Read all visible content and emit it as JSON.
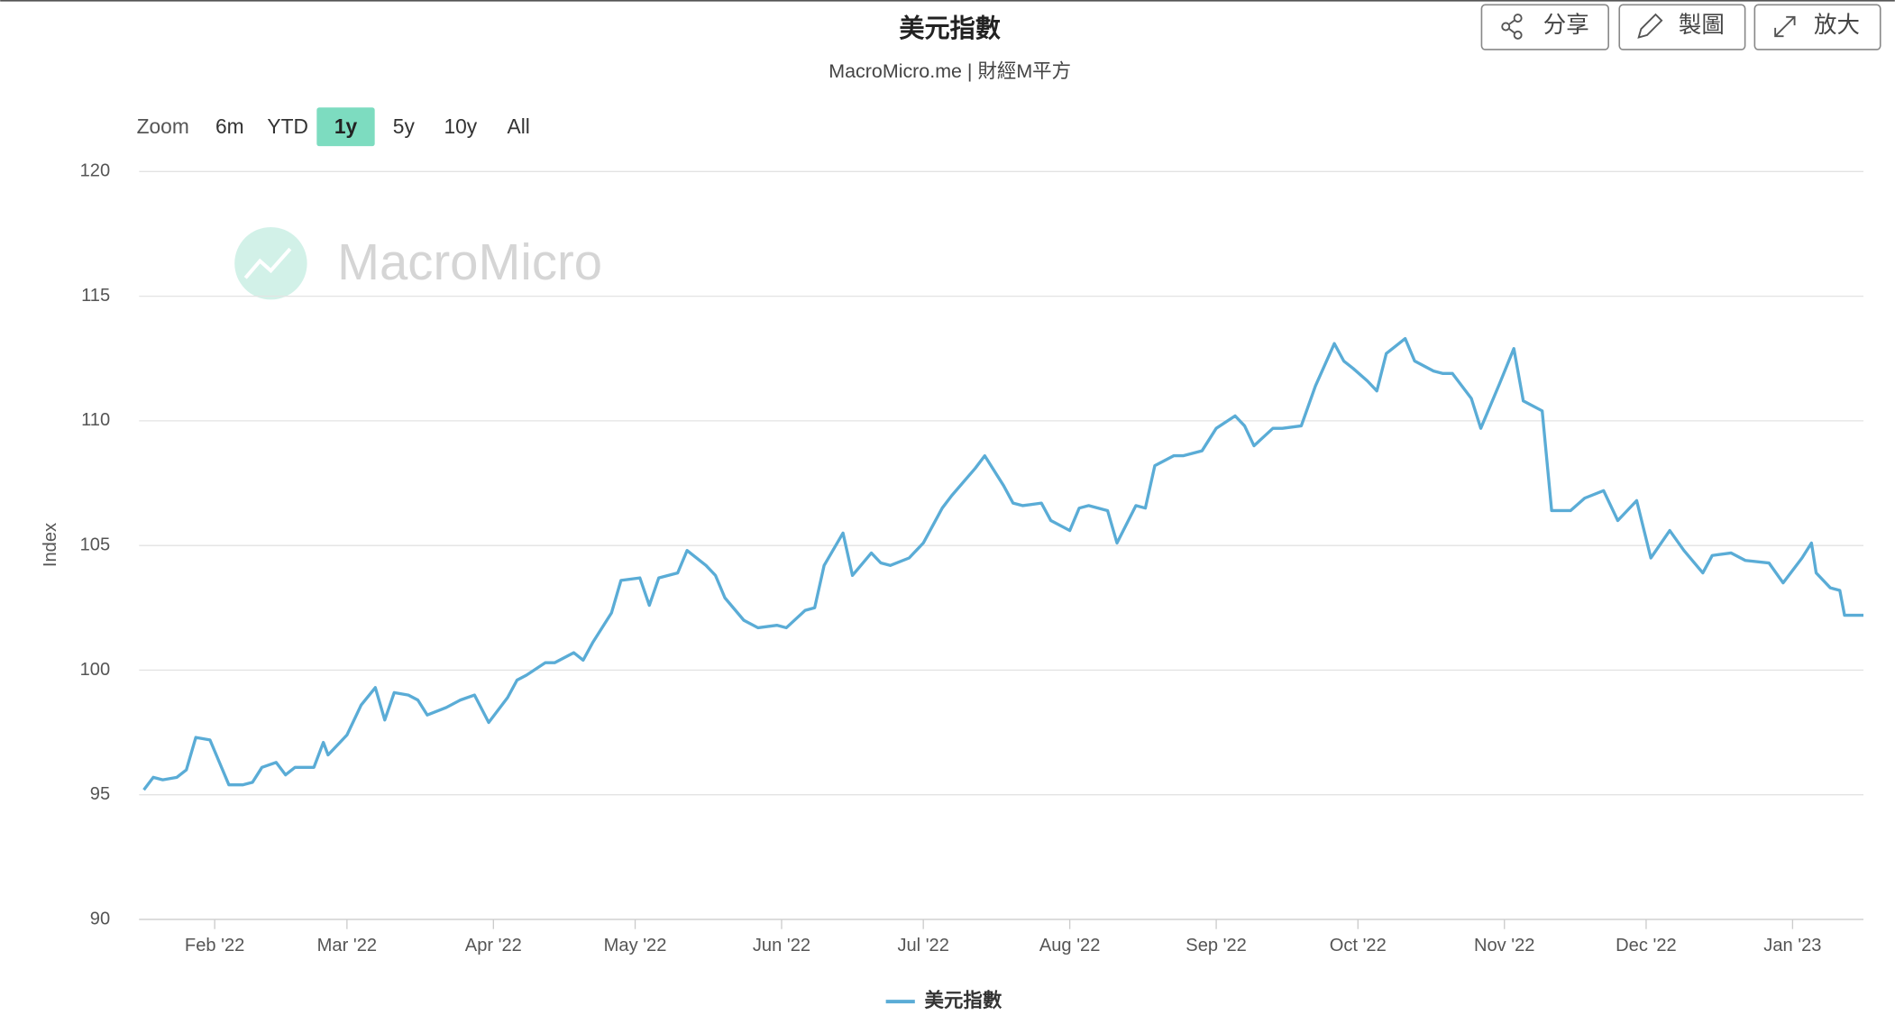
{
  "toolbar": [
    "分享",
    "製圖",
    "放大"
  ],
  "zoom": {
    "label": "Zoom",
    "options": [
      "6m",
      "YTD",
      "1y",
      "5y",
      "10y",
      "All"
    ],
    "selected": "1y"
  },
  "chart_data": {
    "type": "line",
    "title": "美元指數",
    "subtitle": "MacroMicro.me | 財經M平方",
    "watermark": "MacroMicro",
    "y_label": "Index",
    "grid": true,
    "legend": "bottom",
    "xlim": [
      "2022-01-16",
      "2023-01-16"
    ],
    "xticks": [
      {
        "value": "2022-02-01",
        "label": "Feb '22"
      },
      {
        "value": "2022-03-01",
        "label": "Mar '22"
      },
      {
        "value": "2022-04-01",
        "label": "Apr '22"
      },
      {
        "value": "2022-05-01",
        "label": "May '22"
      },
      {
        "value": "2022-06-01",
        "label": "Jun '22"
      },
      {
        "value": "2022-07-01",
        "label": "Jul '22"
      },
      {
        "value": "2022-08-01",
        "label": "Aug '22"
      },
      {
        "value": "2022-09-01",
        "label": "Sep '22"
      },
      {
        "value": "2022-10-01",
        "label": "Oct '22"
      },
      {
        "value": "2022-11-01",
        "label": "Nov '22"
      },
      {
        "value": "2022-12-01",
        "label": "Dec '22"
      },
      {
        "value": "2023-01-01",
        "label": "Jan '23"
      }
    ],
    "ylim": [
      90,
      120
    ],
    "yticks": [
      90,
      95,
      100,
      105,
      110,
      115,
      120
    ],
    "x": [
      "2022-01-17",
      "2022-01-19",
      "2022-01-21",
      "2022-01-24",
      "2022-01-26",
      "2022-01-28",
      "2022-01-31",
      "2022-02-02",
      "2022-02-04",
      "2022-02-07",
      "2022-02-09",
      "2022-02-11",
      "2022-02-14",
      "2022-02-16",
      "2022-02-18",
      "2022-02-22",
      "2022-02-24",
      "2022-02-25",
      "2022-03-01",
      "2022-03-04",
      "2022-03-07",
      "2022-03-09",
      "2022-03-11",
      "2022-03-14",
      "2022-03-16",
      "2022-03-18",
      "2022-03-22",
      "2022-03-25",
      "2022-03-28",
      "2022-03-31",
      "2022-04-04",
      "2022-04-06",
      "2022-04-08",
      "2022-04-12",
      "2022-04-14",
      "2022-04-18",
      "2022-04-20",
      "2022-04-22",
      "2022-04-26",
      "2022-04-28",
      "2022-05-02",
      "2022-05-04",
      "2022-05-06",
      "2022-05-10",
      "2022-05-12",
      "2022-05-16",
      "2022-05-18",
      "2022-05-20",
      "2022-05-24",
      "2022-05-27",
      "2022-05-31",
      "2022-06-02",
      "2022-06-06",
      "2022-06-08",
      "2022-06-10",
      "2022-06-14",
      "2022-06-16",
      "2022-06-20",
      "2022-06-22",
      "2022-06-24",
      "2022-06-28",
      "2022-07-01",
      "2022-07-05",
      "2022-07-07",
      "2022-07-12",
      "2022-07-14",
      "2022-07-18",
      "2022-07-20",
      "2022-07-22",
      "2022-07-26",
      "2022-07-28",
      "2022-08-01",
      "2022-08-03",
      "2022-08-05",
      "2022-08-09",
      "2022-08-11",
      "2022-08-15",
      "2022-08-17",
      "2022-08-19",
      "2022-08-23",
      "2022-08-25",
      "2022-08-29",
      "2022-09-01",
      "2022-09-05",
      "2022-09-07",
      "2022-09-09",
      "2022-09-13",
      "2022-09-15",
      "2022-09-19",
      "2022-09-22",
      "2022-09-26",
      "2022-09-28",
      "2022-09-30",
      "2022-10-03",
      "2022-10-05",
      "2022-10-07",
      "2022-10-11",
      "2022-10-13",
      "2022-10-17",
      "2022-10-19",
      "2022-10-21",
      "2022-10-25",
      "2022-10-27",
      "2022-10-31",
      "2022-11-03",
      "2022-11-05",
      "2022-11-09",
      "2022-11-11",
      "2022-11-15",
      "2022-11-18",
      "2022-11-22",
      "2022-11-25",
      "2022-11-29",
      "2022-12-02",
      "2022-12-06",
      "2022-12-09",
      "2022-12-13",
      "2022-12-15",
      "2022-12-19",
      "2022-12-22",
      "2022-12-27",
      "2022-12-30",
      "2023-01-03",
      "2023-01-05",
      "2023-01-06",
      "2023-01-09",
      "2023-01-11",
      "2023-01-12",
      "2023-01-16"
    ],
    "series": [
      {
        "name": "美元指數",
        "color": "#5aacd6",
        "values": [
          95.2,
          95.7,
          95.6,
          95.7,
          96.0,
          97.3,
          97.2,
          96.3,
          95.4,
          95.4,
          95.5,
          96.1,
          96.3,
          95.8,
          96.1,
          96.1,
          97.1,
          96.6,
          97.4,
          98.6,
          99.3,
          98.0,
          99.1,
          99.0,
          98.8,
          98.2,
          98.5,
          98.8,
          99.0,
          97.9,
          98.9,
          99.6,
          99.8,
          100.3,
          100.3,
          100.7,
          100.4,
          101.1,
          102.3,
          103.6,
          103.7,
          102.6,
          103.7,
          103.9,
          104.8,
          104.2,
          103.8,
          102.9,
          102.0,
          101.7,
          101.8,
          101.7,
          102.4,
          102.5,
          104.2,
          105.5,
          103.8,
          104.7,
          104.3,
          104.2,
          104.5,
          105.1,
          106.5,
          107.0,
          108.1,
          108.6,
          107.4,
          106.7,
          106.6,
          106.7,
          106.0,
          105.6,
          106.5,
          106.6,
          106.4,
          105.1,
          106.6,
          106.5,
          108.2,
          108.6,
          108.6,
          108.8,
          109.7,
          110.2,
          109.8,
          109.0,
          109.7,
          109.7,
          109.8,
          111.4,
          113.1,
          112.4,
          112.1,
          111.6,
          111.2,
          112.7,
          113.3,
          112.4,
          112.0,
          111.9,
          111.9,
          110.9,
          109.7,
          111.5,
          112.9,
          110.8,
          110.4,
          106.4,
          106.4,
          106.9,
          107.2,
          106.0,
          106.8,
          104.5,
          105.6,
          104.8,
          103.9,
          104.6,
          104.7,
          104.4,
          104.3,
          103.5,
          104.5,
          105.1,
          103.9,
          103.3,
          103.2,
          102.2,
          102.2
        ]
      }
    ]
  }
}
